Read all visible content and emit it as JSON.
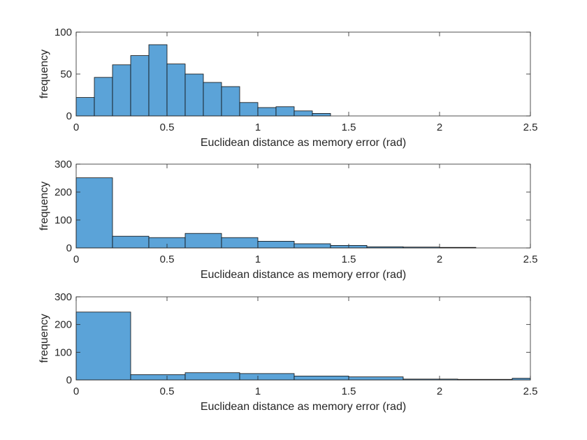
{
  "colors": {
    "bar_fill": "#5ba3d8",
    "bar_edge": "#0d0d0d",
    "axis": "#262626",
    "background": "#ffffff"
  },
  "chart_data": [
    {
      "type": "bar",
      "xlabel": "Euclidean distance as memory error (rad)",
      "ylabel": "frequency",
      "xlim": [
        0,
        2.5
      ],
      "ylim": [
        0,
        100
      ],
      "xticks": [
        0,
        0.5,
        1,
        1.5,
        2,
        2.5
      ],
      "xtick_labels": [
        "0",
        "0.5",
        "1",
        "1.5",
        "2",
        "2.5"
      ],
      "yticks": [
        0,
        50,
        100
      ],
      "ytick_labels": [
        "0",
        "50",
        "100"
      ],
      "bin_width": 0.1,
      "bin_edges": [
        0,
        0.1,
        0.2,
        0.3,
        0.4,
        0.5,
        0.6,
        0.7,
        0.8,
        0.9,
        1.0,
        1.1,
        1.2,
        1.3,
        1.4
      ],
      "values": [
        22,
        46,
        61,
        72,
        85,
        62,
        50,
        40,
        35,
        16,
        10,
        11,
        6,
        3
      ],
      "grid": false
    },
    {
      "type": "bar",
      "xlabel": "Euclidean distance as memory error (rad)",
      "ylabel": "frequency",
      "xlim": [
        0,
        2.5
      ],
      "ylim": [
        0,
        300
      ],
      "xticks": [
        0,
        0.5,
        1,
        1.5,
        2,
        2.5
      ],
      "xtick_labels": [
        "0",
        "0.5",
        "1",
        "1.5",
        "2",
        "2.5"
      ],
      "yticks": [
        0,
        100,
        200,
        300
      ],
      "ytick_labels": [
        "0",
        "100",
        "200",
        "300"
      ],
      "bin_width": 0.2,
      "bin_edges": [
        0,
        0.2,
        0.4,
        0.6,
        0.8,
        1.0,
        1.2,
        1.4,
        1.6,
        1.8,
        2.0,
        2.2
      ],
      "values": [
        251,
        42,
        37,
        52,
        37,
        24,
        15,
        9,
        4,
        3,
        2
      ],
      "grid": false
    },
    {
      "type": "bar",
      "xlabel": "Euclidean distance as memory error (rad)",
      "ylabel": "frequency",
      "xlim": [
        0,
        2.5
      ],
      "ylim": [
        0,
        300
      ],
      "xticks": [
        0,
        0.5,
        1,
        1.5,
        2,
        2.5
      ],
      "xtick_labels": [
        "0",
        "0.5",
        "1",
        "1.5",
        "2",
        "2.5"
      ],
      "yticks": [
        0,
        100,
        200,
        300
      ],
      "ytick_labels": [
        "0",
        "100",
        "200",
        "300"
      ],
      "bin_width": 0.3,
      "bin_edges": [
        0,
        0.3,
        0.6,
        0.9,
        1.2,
        1.5,
        1.8,
        2.1,
        2.4,
        2.7
      ],
      "values": [
        245,
        19,
        26,
        23,
        14,
        11,
        3,
        2,
        6
      ],
      "grid": false
    }
  ]
}
